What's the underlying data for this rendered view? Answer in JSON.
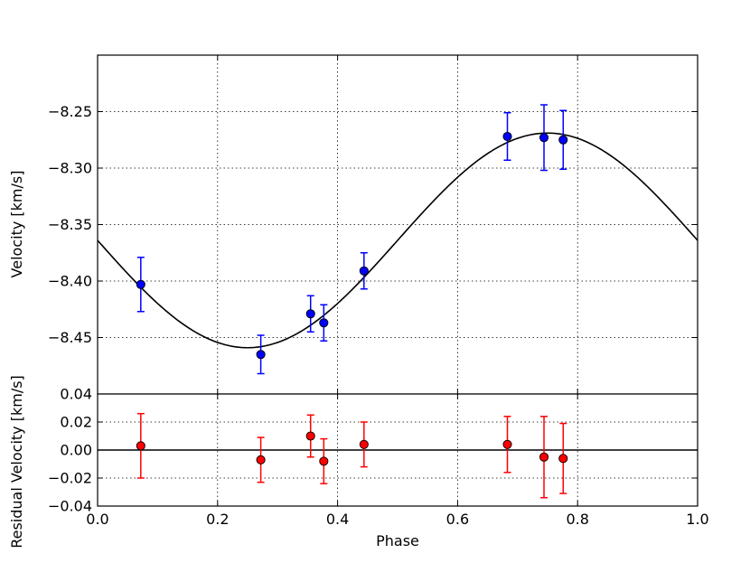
{
  "chart_data": [
    {
      "type": "scatter",
      "panel": "top",
      "xlabel": "",
      "ylabel": "Velocity [km/s]",
      "xlim": [
        0.0,
        1.0
      ],
      "ylim": [
        -8.5,
        -8.2
      ],
      "xticks": [
        0.0,
        0.2,
        0.4,
        0.6,
        0.8,
        1.0
      ],
      "yticks": [
        -8.25,
        -8.3,
        -8.35,
        -8.4,
        -8.45
      ],
      "ytick_labels": [
        "−8.25",
        "−8.30",
        "−8.35",
        "−8.40",
        "−8.45"
      ],
      "grid": true,
      "marker_color": "#0000ff",
      "model": {
        "type": "line",
        "form": "sinusoid",
        "color": "#000000",
        "mean": -8.364,
        "amplitude": 0.095,
        "phase_of_minimum": 0.25
      },
      "series": [
        {
          "x": [
            0.072,
            0.272,
            0.355,
            0.377,
            0.444,
            0.683,
            0.744,
            0.776
          ],
          "y": [
            -8.403,
            -8.465,
            -8.429,
            -8.437,
            -8.391,
            -8.272,
            -8.273,
            -8.275
          ],
          "yerr": [
            0.024,
            0.017,
            0.016,
            0.016,
            0.016,
            0.021,
            0.029,
            0.026
          ]
        }
      ]
    },
    {
      "type": "scatter",
      "panel": "bottom",
      "xlabel": "Phase",
      "ylabel": "Residual Velocity [km/s]",
      "xlim": [
        0.0,
        1.0
      ],
      "ylim": [
        -0.04,
        0.04
      ],
      "xticks": [
        0.0,
        0.2,
        0.4,
        0.6,
        0.8,
        1.0
      ],
      "xtick_labels": [
        "0.0",
        "0.2",
        "0.4",
        "0.6",
        "0.8",
        "1.0"
      ],
      "yticks": [
        0.04,
        0.02,
        0.0,
        -0.02,
        -0.04
      ],
      "ytick_labels": [
        "0.04",
        "0.02",
        "0.00",
        "−0.02",
        "−0.04"
      ],
      "grid": true,
      "marker_color": "#ff0000",
      "zero_line": 0.0,
      "series": [
        {
          "x": [
            0.072,
            0.272,
            0.355,
            0.377,
            0.444,
            0.683,
            0.744,
            0.776
          ],
          "y": [
            0.003,
            -0.007,
            0.01,
            -0.008,
            0.004,
            0.004,
            -0.005,
            -0.006
          ],
          "yerr": [
            0.023,
            0.016,
            0.015,
            0.016,
            0.016,
            0.02,
            0.029,
            0.025
          ]
        }
      ]
    }
  ]
}
